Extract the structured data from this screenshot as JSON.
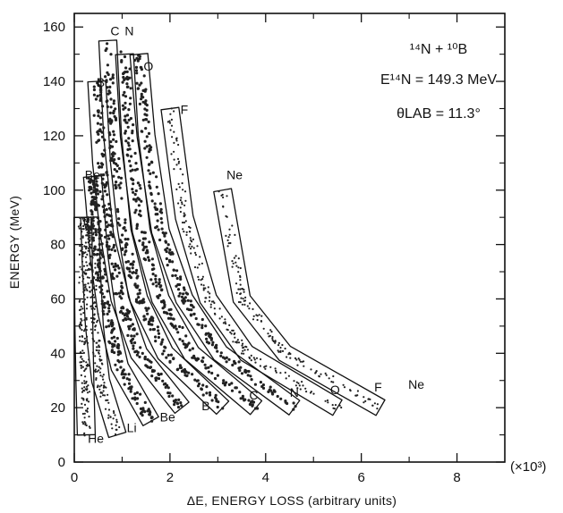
{
  "chart_data": {
    "type": "scatter",
    "subtype": "particle-identification-plot",
    "xlabel": "ΔE, ENERGY LOSS (arbitrary units)",
    "x_multiplier_label": "(×10³)",
    "ylabel": "ENERGY (MeV)",
    "xlim": [
      0,
      9
    ],
    "ylim": [
      0,
      165
    ],
    "x_ticks": [
      0,
      2,
      4,
      6,
      8
    ],
    "x_tick_labels": [
      "0",
      "2",
      "4",
      "6",
      "8"
    ],
    "y_ticks": [
      0,
      20,
      40,
      60,
      80,
      100,
      120,
      140,
      160
    ],
    "y_tick_labels": [
      "0",
      "20",
      "40",
      "60",
      "80",
      "100",
      "120",
      "140",
      "160"
    ],
    "grid": false,
    "annotation": {
      "reaction": "¹⁴N + ¹⁰B",
      "beam_energy": "E¹⁴N = 149.3 MeV",
      "angle": "θLAB = 11.3°"
    },
    "series": [
      {
        "name": "He",
        "x": [
          0.25,
          0.22,
          0.2,
          0.19,
          0.18
        ],
        "y": [
          10,
          30,
          50,
          70,
          90
        ]
      },
      {
        "name": "Li",
        "x": [
          0.9,
          0.55,
          0.42,
          0.36,
          0.33,
          0.32
        ],
        "y": [
          10,
          30,
          50,
          70,
          85,
          90
        ]
      },
      {
        "name": "Be",
        "x": [
          1.6,
          0.95,
          0.68,
          0.52,
          0.43,
          0.38
        ],
        "y": [
          15,
          35,
          55,
          75,
          95,
          105
        ]
      },
      {
        "name": "B",
        "x": [
          2.25,
          1.35,
          0.95,
          0.72,
          0.57,
          0.47
        ],
        "y": [
          20,
          40,
          60,
          85,
          110,
          140
        ]
      },
      {
        "name": "C",
        "x": [
          3.1,
          1.9,
          1.35,
          1.0,
          0.8,
          0.7
        ],
        "y": [
          20,
          40,
          60,
          85,
          120,
          155
        ]
      },
      {
        "name": "N",
        "x": [
          3.8,
          2.45,
          1.8,
          1.4,
          1.15,
          1.05
        ],
        "y": [
          20,
          40,
          60,
          85,
          120,
          150
        ]
      },
      {
        "name": "O",
        "x": [
          4.6,
          3.05,
          2.3,
          1.8,
          1.5,
          1.35
        ],
        "y": [
          20,
          40,
          60,
          85,
          120,
          150
        ]
      },
      {
        "name": "F",
        "x": [
          5.5,
          3.6,
          2.8,
          2.3,
          2.0
        ],
        "y": [
          20,
          40,
          60,
          90,
          130
        ]
      },
      {
        "name": "Ne",
        "x": [
          6.4,
          4.4,
          3.5,
          3.1
        ],
        "y": [
          20,
          40,
          60,
          100
        ]
      }
    ]
  }
}
